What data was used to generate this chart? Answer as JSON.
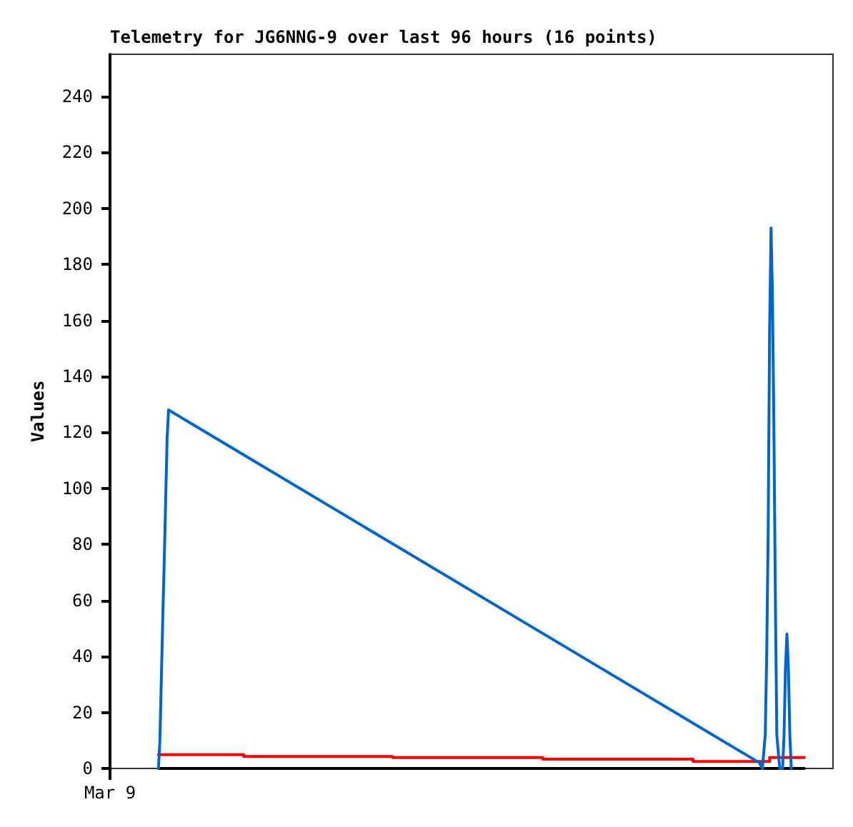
{
  "chart_data": {
    "type": "line",
    "title": "Telemetry for JG6NNG-9 over last 96 hours (16 points)",
    "ylabel": "Values",
    "annotations": [
      "Mar 9"
    ],
    "categories": [
      null,
      null,
      null,
      null,
      null,
      null,
      null,
      null,
      null,
      null,
      null,
      null,
      null,
      null,
      null,
      null,
      null,
      null,
      null,
      null,
      null,
      null,
      null,
      null,
      null,
      null,
      null,
      null,
      null,
      null,
      null,
      null,
      null,
      null,
      null,
      null,
      null,
      null,
      null,
      null,
      null,
      null,
      null,
      null,
      null,
      null,
      null,
      null,
      null,
      null,
      null,
      null,
      null,
      null,
      null,
      null,
      null,
      null,
      null,
      null,
      null,
      null,
      null,
      null,
      null,
      null,
      null,
      null,
      null,
      null,
      null,
      null,
      null,
      null,
      null,
      null,
      null,
      null,
      null,
      null,
      null,
      null,
      null,
      null,
      null,
      null,
      null,
      null,
      null,
      null,
      null,
      null,
      null,
      null,
      null,
      null,
      null,
      null,
      null,
      null,
      null,
      null,
      null,
      null,
      null,
      null,
      null,
      null,
      null,
      null,
      null,
      null,
      null,
      null,
      null,
      null,
      null,
      null,
      null,
      null,
      null,
      null,
      null,
      null,
      null,
      null,
      null,
      null,
      null,
      null,
      null,
      null,
      null,
      null,
      null,
      null,
      null,
      null,
      null,
      null,
      null,
      null,
      null,
      null,
      null,
      null,
      null,
      null,
      null,
      null,
      null,
      null,
      null,
      null,
      null,
      null,
      null,
      null,
      null,
      null,
      null,
      null,
      null,
      null,
      null,
      null,
      null,
      null,
      null,
      null,
      null,
      null,
      null,
      null,
      null,
      null,
      null,
      null,
      null,
      null,
      null,
      null,
      null,
      null,
      null,
      null,
      null,
      null,
      null,
      null,
      null,
      null,
      null,
      null,
      null,
      null,
      null,
      null,
      null,
      null,
      null,
      null,
      null,
      null,
      null,
      null,
      null,
      null,
      null,
      null,
      null,
      null,
      null,
      null,
      null,
      null,
      null,
      null,
      null,
      null,
      null,
      null,
      null,
      null,
      null,
      null,
      null,
      null,
      null,
      null,
      null,
      null,
      null,
      null,
      null,
      null,
      null,
      null,
      null,
      null,
      null,
      null,
      null,
      null,
      null,
      null,
      null,
      null,
      null,
      null,
      null,
      null,
      null,
      null,
      null,
      null,
      null,
      null,
      null,
      null,
      null,
      null,
      null,
      null,
      null,
      null,
      null,
      null,
      null,
      null,
      null,
      null,
      null,
      null,
      null,
      null,
      null,
      null,
      null,
      null,
      null,
      null,
      null,
      null,
      null,
      null,
      null,
      null,
      null,
      null,
      null,
      null,
      null,
      null,
      null,
      null,
      null,
      null,
      null,
      null,
      null,
      null,
      null,
      null,
      null,
      null,
      null,
      null,
      null,
      null,
      null,
      null,
      null,
      null,
      null,
      null,
      null,
      null,
      null,
      null,
      null,
      null,
      null,
      null,
      null,
      null,
      null,
      null,
      null,
      null,
      null,
      null,
      null,
      null,
      null,
      null,
      null,
      null,
      null,
      null,
      null,
      null,
      null,
      null,
      null,
      null,
      null,
      null,
      null,
      null,
      null,
      null,
      null,
      null,
      null,
      null,
      null,
      null,
      null,
      null,
      null,
      null,
      null,
      null,
      null,
      null,
      null,
      null,
      null,
      null,
      null,
      null,
      null,
      null,
      null,
      null,
      null,
      null,
      null,
      null,
      null,
      null,
      null,
      null,
      null,
      null,
      null,
      null,
      null,
      null,
      null,
      null,
      null,
      null,
      null,
      null,
      null,
      null,
      null,
      null,
      null,
      null,
      null,
      null,
      null,
      null,
      null,
      null,
      null,
      null,
      null,
      null,
      null,
      null,
      null,
      null,
      null,
      null,
      null,
      null,
      null,
      null,
      null,
      null,
      null,
      null,
      null,
      null,
      null,
      null,
      null,
      null,
      null,
      null,
      null,
      null,
      null,
      null,
      null,
      null,
      null,
      null,
      null,
      null,
      null,
      null,
      null,
      null
    ],
    "ylim": [
      0,
      255
    ],
    "yticks": [
      0,
      20,
      40,
      60,
      80,
      100,
      120,
      140,
      160,
      180,
      200,
      220,
      240
    ],
    "grid": false,
    "marker": "none",
    "line_style": "solid",
    "series": [
      {
        "type": "step",
        "color": "#ff0000",
        "values": [
          4.9,
          null,
          null,
          null,
          null,
          null,
          null,
          null,
          null,
          null,
          null,
          null,
          null,
          null,
          null,
          null,
          null,
          null,
          null,
          null,
          null,
          null,
          null,
          null,
          null,
          null,
          null,
          null,
          null,
          null,
          null,
          null,
          null,
          null,
          null,
          null,
          null,
          null,
          null,
          null,
          null,
          null,
          null,
          null,
          null,
          null,
          null,
          null,
          null,
          null,
          null,
          null,
          null,
          null,
          null,
          null,
          null,
          null,
          null,
          4.3,
          null,
          null,
          null,
          null,
          null,
          null,
          null,
          null,
          null,
          null,
          null,
          null,
          null,
          null,
          null,
          null,
          null,
          null,
          null,
          null,
          null,
          null,
          null,
          null,
          null,
          null,
          null,
          null,
          null,
          null,
          null,
          null,
          null,
          null,
          null,
          null,
          null,
          null,
          null,
          null,
          null,
          null,
          null,
          null,
          null,
          null,
          null,
          null,
          null,
          null,
          null,
          null,
          null,
          null,
          null,
          null,
          null,
          null,
          null,
          null,
          null,
          null,
          null,
          null,
          null,
          null,
          null,
          null,
          null,
          null,
          null,
          null,
          null,
          null,
          null,
          null,
          null,
          null,
          null,
          null,
          null,
          null,
          null,
          null,
          null,
          null,
          null,
          null,
          null,
          null,
          null,
          null,
          null,
          null,
          null,
          null,
          null,
          null,
          null,
          null,
          null,
          null,
          3.9,
          null,
          null,
          null,
          null,
          null,
          null,
          null,
          null,
          null,
          null,
          null,
          null,
          null,
          null,
          null,
          null,
          null,
          null,
          null,
          null,
          null,
          null,
          null,
          null,
          null,
          null,
          null,
          null,
          null,
          null,
          null,
          null,
          null,
          null,
          null,
          null,
          null,
          null,
          null,
          null,
          null,
          null,
          null,
          null,
          null,
          null,
          null,
          null,
          null,
          null,
          null,
          null,
          null,
          null,
          null,
          null,
          null,
          null,
          null,
          null,
          null,
          null,
          null,
          null,
          null,
          null,
          null,
          null,
          null,
          null,
          null,
          null,
          null,
          null,
          null,
          null,
          null,
          null,
          null,
          null,
          null,
          null,
          null,
          null,
          null,
          null,
          null,
          null,
          null,
          null,
          null,
          null,
          null,
          null,
          null,
          null,
          null,
          null,
          null,
          null,
          null,
          null,
          null,
          3.3,
          null,
          null,
          null,
          null,
          null,
          null,
          null,
          null,
          null,
          null,
          null,
          null,
          null,
          null,
          null,
          null,
          null,
          null,
          null,
          null,
          null,
          null,
          null,
          null,
          null,
          null,
          null,
          null,
          null,
          null,
          null,
          null,
          null,
          null,
          null,
          null,
          null,
          null,
          null,
          null,
          null,
          null,
          null,
          null,
          null,
          null,
          null,
          null,
          null,
          null,
          null,
          null,
          null,
          null,
          null,
          null,
          null,
          null,
          null,
          null,
          null,
          null,
          null,
          null,
          null,
          null,
          null,
          null,
          null,
          null,
          null,
          null,
          null,
          null,
          null,
          null,
          null,
          null,
          null,
          null,
          null,
          null,
          null,
          null,
          null,
          null,
          null,
          null,
          null,
          null,
          null,
          null,
          null,
          null,
          null,
          null,
          null,
          null,
          null,
          null,
          null,
          null,
          null,
          2.5,
          null,
          null,
          null,
          null,
          null,
          null,
          null,
          null,
          null,
          null,
          null,
          null,
          null,
          null,
          null,
          null,
          null,
          null,
          null,
          null,
          null,
          null,
          null,
          null,
          null,
          null,
          null,
          null,
          null,
          null,
          null,
          null,
          null,
          null,
          null,
          null,
          null,
          null,
          null,
          null,
          null,
          null,
          null,
          null,
          null,
          null,
          null,
          null,
          null,
          null,
          null,
          null,
          3.9,
          null,
          null,
          null,
          null,
          null,
          null,
          null,
          null,
          null,
          null,
          null,
          null,
          null,
          null,
          null,
          null,
          null,
          null,
          null,
          null,
          null,
          null,
          null,
          3.9
        ]
      },
      {
        "color": "#000000",
        "values": [
          0,
          null,
          null,
          null,
          null,
          null,
          null,
          null,
          null,
          null,
          null,
          null,
          null,
          null,
          null,
          null,
          null,
          null,
          null,
          null,
          null,
          null,
          null,
          null,
          null,
          null,
          null,
          null,
          null,
          null,
          null,
          null,
          null,
          null,
          null,
          null,
          null,
          null,
          null,
          null,
          null,
          null,
          null,
          null,
          null,
          null,
          null,
          null,
          null,
          null,
          null,
          null,
          null,
          null,
          null,
          null,
          null,
          null,
          null,
          null,
          null,
          null,
          null,
          null,
          null,
          null,
          null,
          null,
          null,
          null,
          null,
          null,
          null,
          null,
          null,
          null,
          null,
          null,
          null,
          null,
          null,
          null,
          null,
          null,
          null,
          null,
          null,
          null,
          null,
          null,
          null,
          null,
          null,
          null,
          null,
          null,
          null,
          null,
          null,
          null,
          null,
          null,
          null,
          null,
          null,
          null,
          null,
          null,
          null,
          null,
          null,
          null,
          null,
          null,
          null,
          null,
          null,
          null,
          null,
          null,
          null,
          null,
          null,
          null,
          null,
          null,
          null,
          null,
          null,
          null,
          null,
          null,
          null,
          null,
          null,
          null,
          null,
          null,
          null,
          null,
          null,
          null,
          null,
          null,
          null,
          null,
          null,
          null,
          null,
          null,
          null,
          null,
          null,
          null,
          null,
          null,
          null,
          null,
          null,
          null,
          null,
          null,
          null,
          null,
          null,
          null,
          null,
          null,
          null,
          null,
          null,
          null,
          null,
          null,
          null,
          null,
          null,
          null,
          null,
          null,
          null,
          null,
          null,
          null,
          null,
          null,
          null,
          null,
          null,
          null,
          null,
          null,
          null,
          null,
          null,
          null,
          null,
          null,
          null,
          null,
          null,
          null,
          null,
          null,
          null,
          null,
          null,
          null,
          null,
          null,
          null,
          null,
          null,
          null,
          null,
          null,
          null,
          null,
          null,
          null,
          null,
          null,
          null,
          null,
          null,
          null,
          null,
          null,
          null,
          null,
          null,
          null,
          null,
          null,
          null,
          null,
          null,
          null,
          null,
          null,
          null,
          null,
          null,
          null,
          null,
          null,
          null,
          null,
          null,
          null,
          null,
          null,
          null,
          null,
          null,
          null,
          null,
          null,
          null,
          null,
          null,
          null,
          null,
          null,
          null,
          null,
          null,
          null,
          null,
          null,
          null,
          null,
          null,
          null,
          null,
          null,
          null,
          null,
          null,
          null,
          null,
          null,
          null,
          null,
          null,
          null,
          null,
          null,
          null,
          null,
          null,
          null,
          null,
          null,
          null,
          null,
          null,
          null,
          null,
          null,
          null,
          null,
          null,
          null,
          null,
          null,
          null,
          null,
          null,
          null,
          null,
          null,
          null,
          null,
          null,
          null,
          null,
          null,
          null,
          null,
          null,
          null,
          null,
          null,
          null,
          null,
          null,
          null,
          null,
          null,
          null,
          null,
          null,
          null,
          null,
          null,
          null,
          null,
          null,
          null,
          null,
          null,
          null,
          null,
          null,
          null,
          null,
          null,
          null,
          null,
          null,
          null,
          null,
          null,
          null,
          null,
          null,
          null,
          null,
          null,
          null,
          null,
          null,
          null,
          null,
          null,
          null,
          null,
          null,
          null,
          null,
          null,
          null,
          null,
          null,
          null,
          null,
          null,
          null,
          null,
          null,
          null,
          null,
          null,
          null,
          null,
          null,
          null,
          null,
          null,
          null,
          null,
          null,
          null,
          null,
          null,
          null,
          null,
          null,
          null,
          null,
          null,
          null,
          null,
          null,
          null,
          null,
          null,
          null,
          null,
          null,
          null,
          null,
          null,
          null,
          null,
          null,
          null,
          null,
          null,
          null,
          null,
          null,
          null,
          null,
          null,
          null,
          null,
          null,
          null,
          null,
          null,
          null,
          null,
          null,
          null,
          null,
          null,
          null,
          null,
          null,
          null,
          null,
          null,
          null,
          null,
          null,
          0
        ]
      },
      {
        "color": "#0066cc",
        "values": [
          0,
          10,
          32,
          54,
          74,
          96,
          118,
          128,
          null,
          null,
          null,
          null,
          null,
          null,
          null,
          null,
          null,
          null,
          null,
          null,
          null,
          null,
          null,
          null,
          null,
          null,
          null,
          null,
          null,
          null,
          null,
          null,
          null,
          null,
          null,
          null,
          null,
          null,
          null,
          null,
          null,
          null,
          null,
          null,
          null,
          null,
          null,
          null,
          null,
          null,
          null,
          null,
          null,
          null,
          null,
          null,
          null,
          null,
          null,
          null,
          null,
          null,
          null,
          null,
          null,
          null,
          null,
          null,
          null,
          null,
          null,
          null,
          null,
          null,
          null,
          null,
          null,
          null,
          null,
          null,
          null,
          null,
          null,
          null,
          null,
          null,
          null,
          null,
          null,
          null,
          null,
          null,
          null,
          null,
          null,
          null,
          null,
          null,
          null,
          null,
          null,
          null,
          null,
          null,
          null,
          null,
          null,
          null,
          null,
          null,
          null,
          null,
          null,
          null,
          null,
          null,
          null,
          null,
          null,
          null,
          null,
          null,
          null,
          null,
          null,
          null,
          null,
          null,
          null,
          null,
          null,
          null,
          null,
          null,
          null,
          null,
          null,
          null,
          null,
          null,
          null,
          null,
          null,
          null,
          null,
          null,
          null,
          null,
          null,
          null,
          null,
          null,
          null,
          null,
          null,
          null,
          null,
          null,
          null,
          null,
          null,
          null,
          null,
          null,
          null,
          null,
          null,
          null,
          null,
          null,
          null,
          null,
          null,
          null,
          null,
          null,
          null,
          null,
          null,
          null,
          null,
          null,
          null,
          null,
          null,
          null,
          null,
          null,
          null,
          null,
          null,
          null,
          null,
          null,
          null,
          null,
          null,
          null,
          null,
          null,
          null,
          null,
          null,
          null,
          null,
          null,
          null,
          null,
          null,
          null,
          null,
          null,
          null,
          null,
          null,
          null,
          null,
          null,
          null,
          null,
          null,
          null,
          null,
          null,
          null,
          null,
          null,
          null,
          null,
          null,
          null,
          null,
          null,
          null,
          null,
          null,
          null,
          null,
          null,
          null,
          null,
          null,
          null,
          null,
          null,
          null,
          null,
          null,
          null,
          null,
          null,
          null,
          null,
          null,
          null,
          null,
          null,
          null,
          null,
          null,
          null,
          null,
          null,
          null,
          null,
          null,
          null,
          null,
          null,
          null,
          null,
          null,
          null,
          null,
          null,
          null,
          null,
          null,
          null,
          null,
          null,
          null,
          null,
          null,
          null,
          null,
          null,
          null,
          null,
          null,
          null,
          null,
          null,
          null,
          null,
          null,
          null,
          null,
          null,
          null,
          null,
          null,
          null,
          null,
          null,
          null,
          null,
          null,
          null,
          null,
          null,
          null,
          null,
          null,
          null,
          null,
          null,
          null,
          null,
          null,
          null,
          null,
          null,
          null,
          null,
          null,
          null,
          null,
          null,
          null,
          null,
          null,
          null,
          null,
          null,
          null,
          null,
          null,
          null,
          null,
          null,
          null,
          null,
          null,
          null,
          null,
          null,
          null,
          null,
          null,
          null,
          null,
          null,
          null,
          null,
          null,
          null,
          null,
          null,
          null,
          null,
          null,
          null,
          null,
          null,
          null,
          null,
          null,
          null,
          null,
          null,
          null,
          null,
          null,
          null,
          null,
          null,
          null,
          null,
          null,
          null,
          null,
          null,
          null,
          null,
          null,
          null,
          null,
          null,
          null,
          null,
          null,
          null,
          null,
          null,
          null,
          null,
          null,
          null,
          null,
          null,
          null,
          null,
          null,
          null,
          null,
          null,
          null,
          null,
          null,
          null,
          null,
          null,
          null,
          null,
          null,
          2,
          null,
          0,
          null,
          12,
          41,
          84,
          156,
          193,
          168,
          120,
          60,
          12,
          null,
          0,
          null,
          0,
          12,
          36,
          48,
          36,
          12,
          0,
          null,
          null,
          null,
          null,
          null,
          null,
          null,
          null,
          null
        ]
      }
    ]
  }
}
